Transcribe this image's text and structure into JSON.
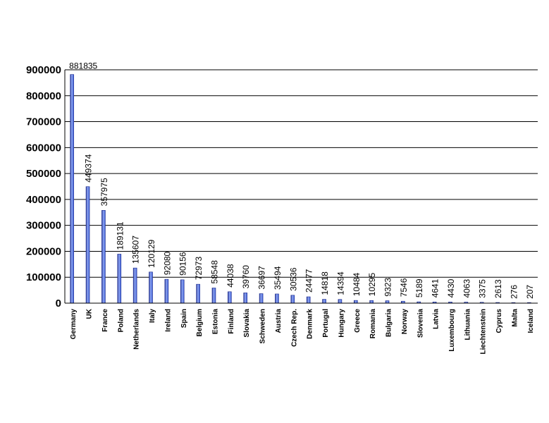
{
  "chart_data": {
    "type": "bar",
    "categories": [
      "Germany",
      "UK",
      "France",
      "Poland",
      "Netherlands",
      "Italy",
      "Ireland",
      "Spain",
      "Belgium",
      "Estonia",
      "Finland",
      "Slovakia",
      "Schweden",
      "Austria",
      "Czech Rep.",
      "Denmark",
      "Portugal",
      "Hungary",
      "Greece",
      "Romania",
      "Bulgaria",
      "Norway",
      "Slovenia",
      "Latvia",
      "Luxembourg",
      "Lithuania",
      "Liechtenstein",
      "Cyprus",
      "Malta",
      "Iceland"
    ],
    "values": [
      881835,
      449374,
      357975,
      189131,
      135607,
      120129,
      92080,
      90156,
      72973,
      58548,
      44038,
      39760,
      36697,
      35494,
      30536,
      24477,
      14818,
      14394,
      10484,
      10295,
      9323,
      7546,
      5189,
      4641,
      4430,
      4063,
      3375,
      2613,
      276,
      207
    ],
    "data_labels": [
      "881835",
      "449374",
      "357975",
      "189131",
      "135607",
      "120129",
      "92080",
      "90156",
      "72973",
      "58548",
      "44038",
      "39760",
      "36697",
      "35494",
      "30536",
      "24477",
      "14818",
      "14394",
      "10484",
      "10295",
      "9323",
      "7546",
      "5189",
      "4641",
      "4430",
      "4063",
      "3375",
      "2613",
      "276",
      "207"
    ],
    "yticks": [
      "0",
      "100000",
      "200000",
      "300000",
      "400000",
      "500000",
      "600000",
      "700000",
      "800000",
      "900000"
    ],
    "ylim": [
      0,
      900000
    ],
    "title": "",
    "xlabel": "",
    "ylabel": "",
    "grid": true,
    "legend": "none",
    "bar_color": "#3f5fd6",
    "bar_highlight": "#8fa6f2",
    "bar_shadow": "#1b2a8c"
  }
}
